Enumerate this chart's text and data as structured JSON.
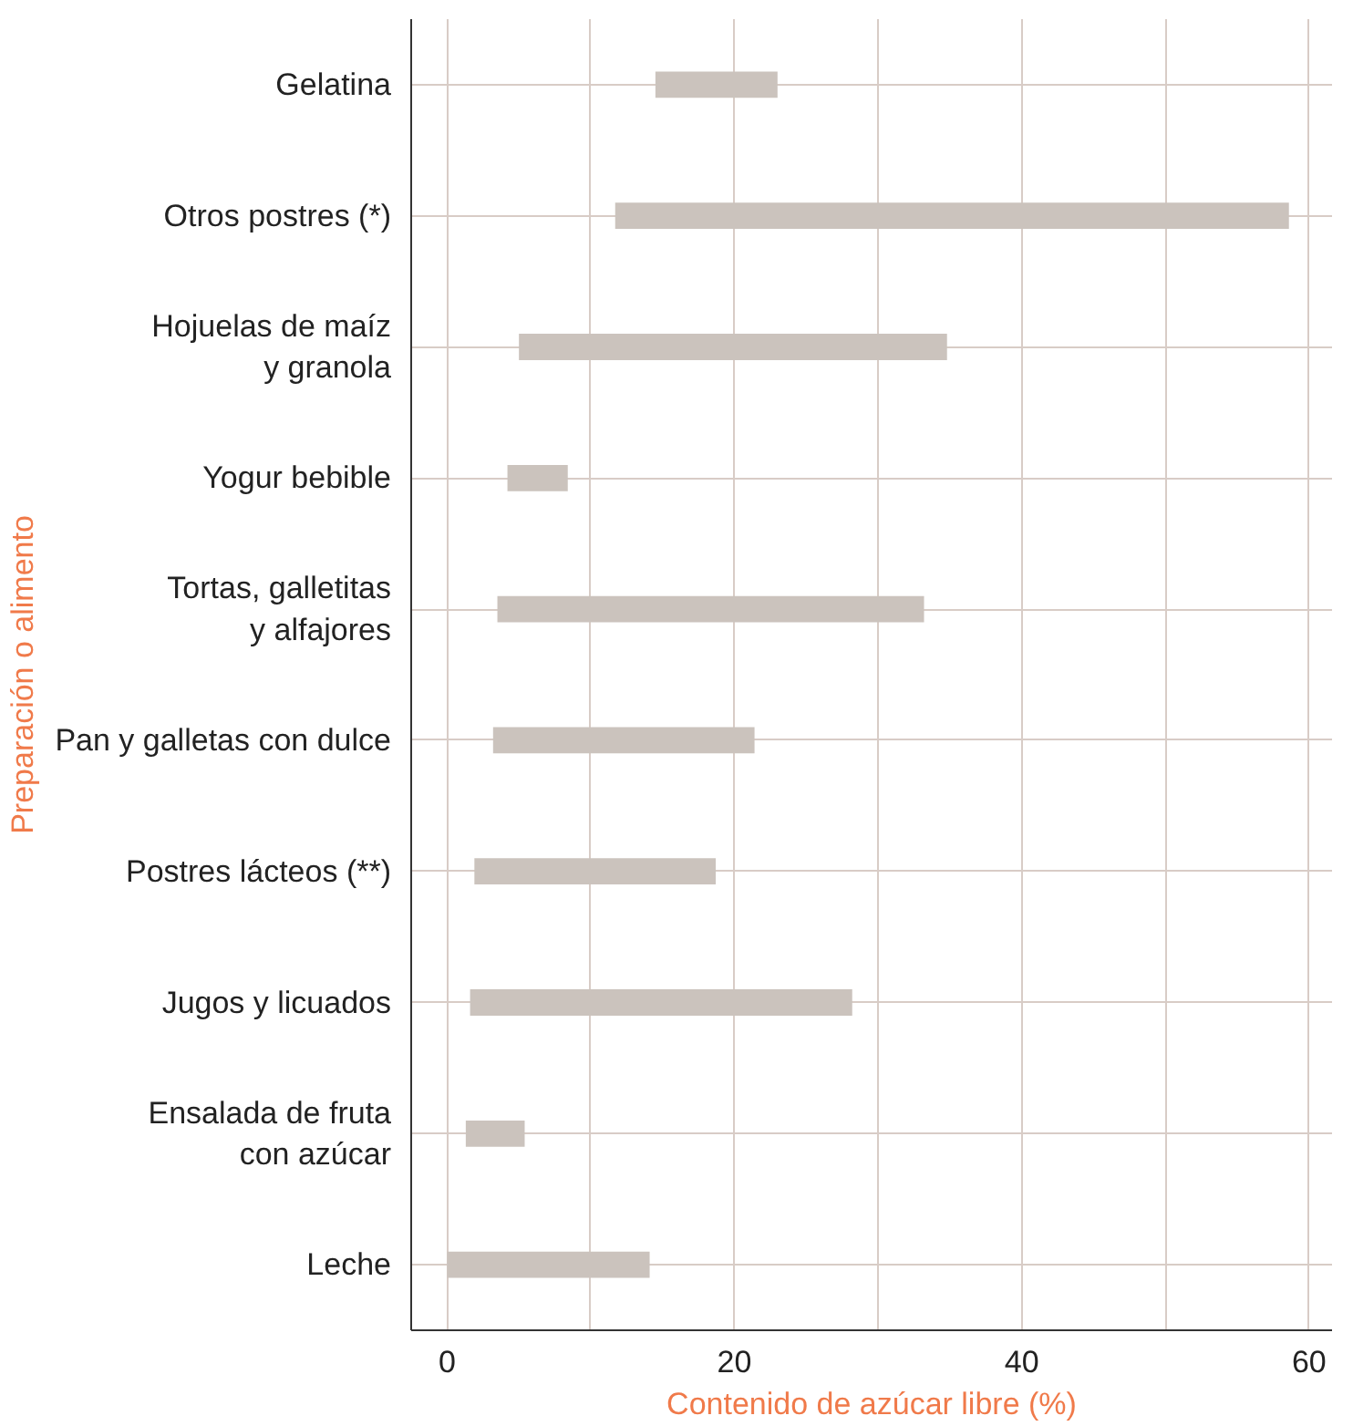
{
  "chart_data": {
    "type": "bar",
    "orientation": "horizontal",
    "categories": [
      "Gelatina",
      "Otros postres (*)",
      "Hojuelas de maíz\ny granola",
      "Yogur bebible",
      "Tortas, galletitas\ny alfajores",
      "Pan y galletas con dulce",
      "Postres lácteos (**)",
      "Jugos y licuados",
      "Ensalada de fruta\ncon azúcar",
      "Leche"
    ],
    "base": [
      14.5,
      11.7,
      5.0,
      4.2,
      3.5,
      3.2,
      1.9,
      1.6,
      1.3,
      0
    ],
    "values": [
      8.5,
      46.9,
      29.8,
      4.2,
      29.7,
      18.2,
      16.8,
      26.6,
      4.1,
      14.1
    ],
    "color": "#cbc3bd",
    "xlabel": "Contenido de azúcar libre (%)",
    "ylabel": "Preparación o alimento",
    "xlim": [
      -2.5,
      61.6
    ],
    "xticks": [
      0,
      {
        "value": 10,
        "label": null
      },
      20,
      {
        "value": 30,
        "label": null
      },
      40,
      {
        "value": 50,
        "label": null
      },
      60
    ],
    "grid": true
  }
}
